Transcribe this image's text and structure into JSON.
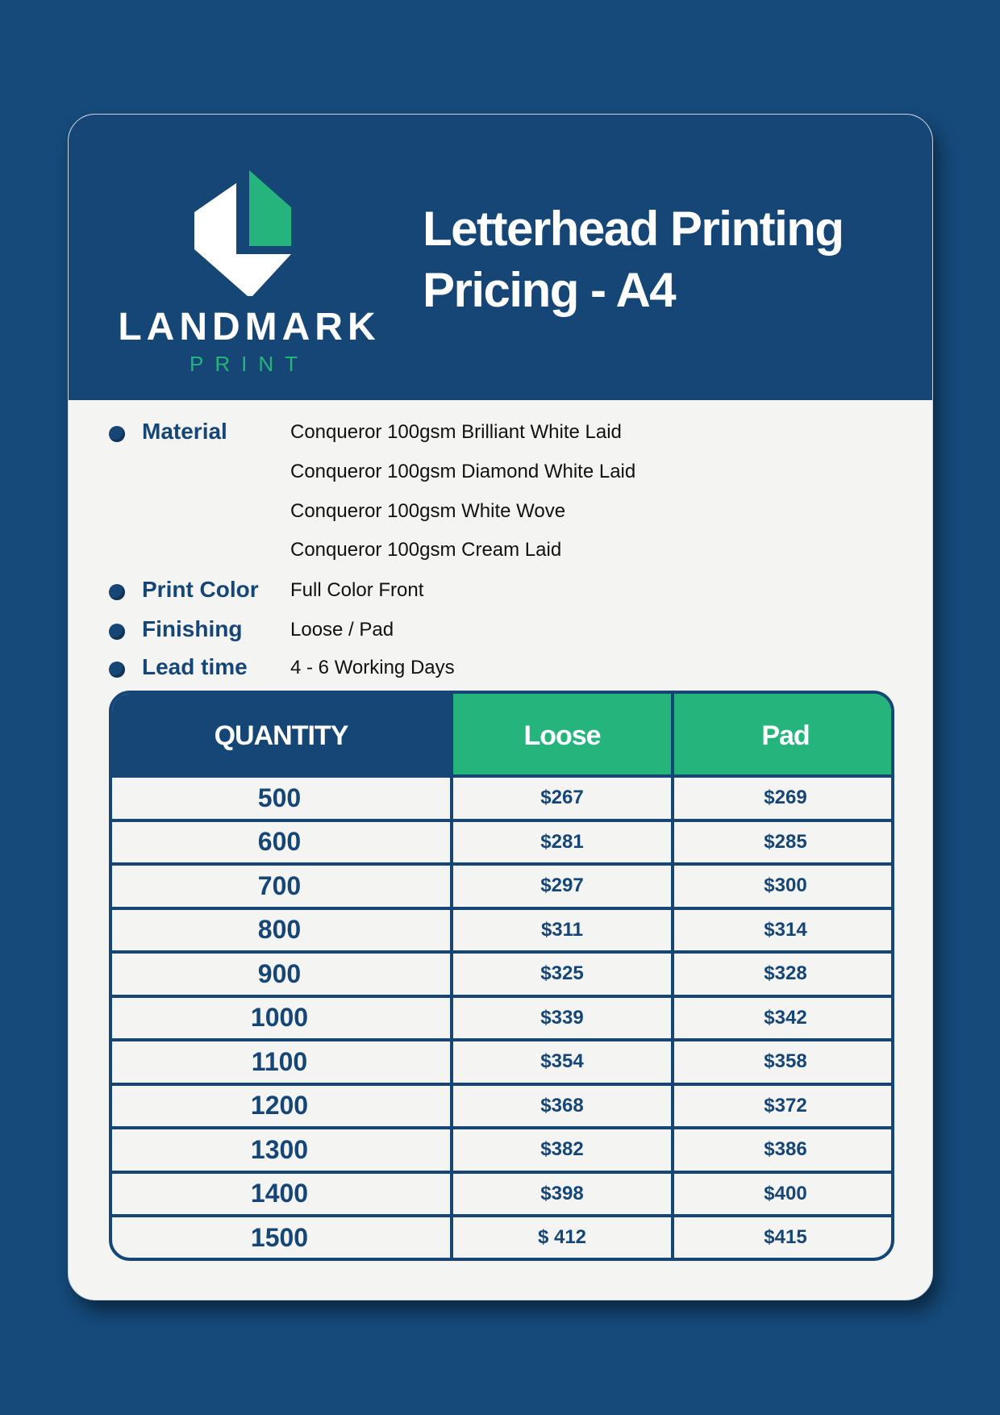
{
  "brand": {
    "name": "LANDMARK",
    "sub": "PRINT",
    "colors": {
      "navy": "#164676",
      "green": "#25b57c",
      "background": "#154a7a"
    }
  },
  "title": {
    "line1": "Letterhead Printing",
    "line2": "Pricing - A4"
  },
  "specs": [
    {
      "label": "Material",
      "values": [
        "Conqueror 100gsm Brilliant White Laid",
        "Conqueror 100gsm Diamond White Laid",
        "Conqueror 100gsm White Wove",
        "Conqueror 100gsm Cream Laid"
      ]
    },
    {
      "label": "Print Color",
      "values": [
        "Full Color Front"
      ]
    },
    {
      "label": "Finishing",
      "values": [
        "Loose / Pad"
      ]
    },
    {
      "label": "Lead time",
      "values": [
        "4 - 6 Working Days"
      ]
    }
  ],
  "table": {
    "headers": [
      "QUANTITY",
      "Loose",
      "Pad"
    ],
    "rows": [
      [
        "500",
        "$267",
        "$269"
      ],
      [
        "600",
        "$281",
        "$285"
      ],
      [
        "700",
        "$297",
        "$300"
      ],
      [
        "800",
        "$311",
        "$314"
      ],
      [
        "900",
        "$325",
        "$328"
      ],
      [
        "1000",
        "$339",
        "$342"
      ],
      [
        "1100",
        "$354",
        "$358"
      ],
      [
        "1200",
        "$368",
        "$372"
      ],
      [
        "1300",
        "$382",
        "$386"
      ],
      [
        "1400",
        "$398",
        "$400"
      ],
      [
        "1500",
        "$ 412",
        "$415"
      ]
    ]
  }
}
